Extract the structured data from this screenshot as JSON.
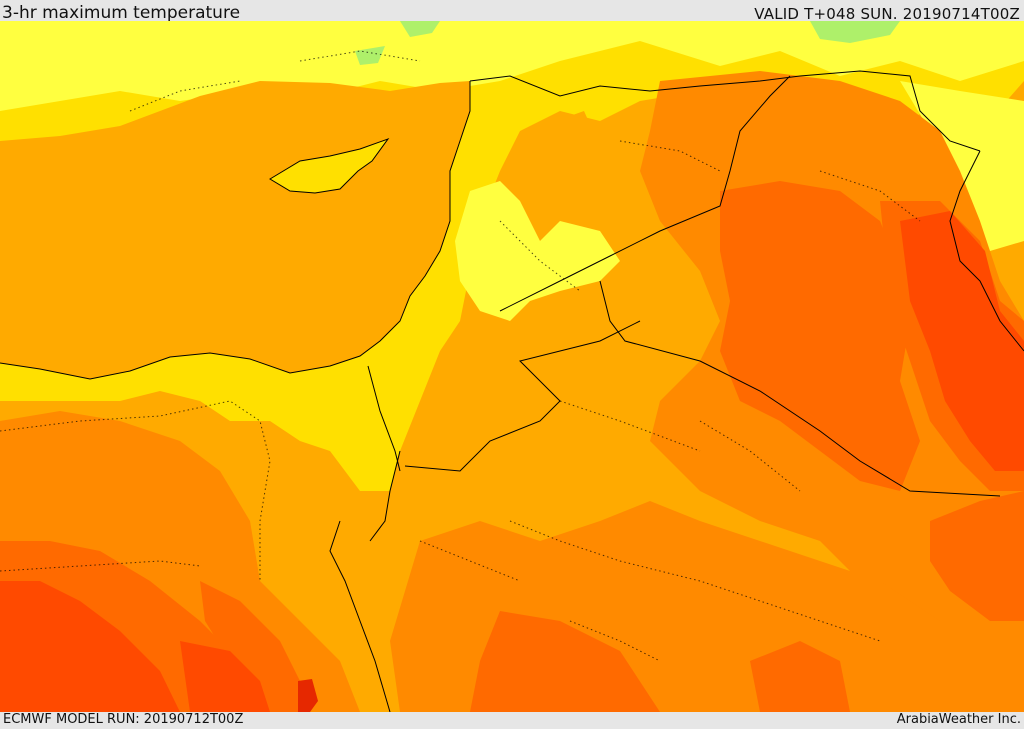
{
  "header": {
    "title": "3-hr maximum temperature",
    "valid": "VALID T+048 SUN. 20190714T00Z"
  },
  "footer": {
    "model_run": "ECMWF MODEL RUN: 20190712T00Z",
    "credit": "ArabiaWeather Inc."
  },
  "map": {
    "field": "3-hr maximum temperature",
    "colors": {
      "green": "#aef06a",
      "yellow_light": "#ffff40",
      "yellow": "#ffe000",
      "gold": "#ffcc00",
      "amber": "#ffaa00",
      "orange": "#ff8a00",
      "orange_red": "#ff6a00",
      "red": "#ff4a00",
      "deep_red": "#e62800",
      "border": "#000000"
    }
  }
}
